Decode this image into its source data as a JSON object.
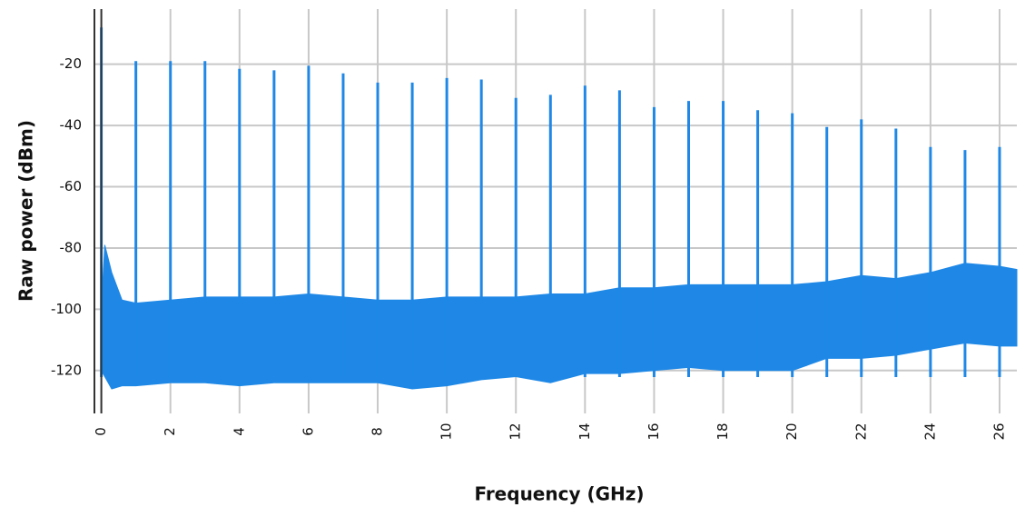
{
  "chart_data": {
    "type": "spectrum",
    "x_label": "Frequency (GHz)",
    "y_label": "Raw power (dBm)",
    "color": "#1f88e6",
    "grid": true,
    "xlim": [
      -0.2,
      26.5
    ],
    "ylim": [
      -134,
      -2
    ],
    "xticks": [
      0,
      2,
      4,
      6,
      8,
      10,
      12,
      14,
      16,
      18,
      20,
      22,
      24,
      26
    ],
    "yticks": [
      -20,
      -40,
      -60,
      -80,
      -100,
      -120
    ],
    "spikes": {
      "x": [
        0,
        1,
        2,
        3,
        4,
        5,
        6,
        7,
        8,
        9,
        10,
        11,
        12,
        13,
        14,
        15,
        16,
        17,
        18,
        19,
        20,
        21,
        22,
        23,
        24,
        25,
        26
      ],
      "values": [
        -8,
        -19,
        -19,
        -19,
        -21.5,
        -22,
        -20.5,
        -23,
        -26,
        -26,
        -24.5,
        -25,
        -31,
        -30,
        -27,
        -28.5,
        -34,
        -32,
        -32,
        -35,
        -36,
        -40.5,
        -38,
        -41,
        -47,
        -48,
        -47
      ]
    },
    "noise": {
      "x": [
        0,
        0.1,
        0.3,
        0.6,
        1,
        2,
        3,
        4,
        5,
        6,
        7,
        8,
        9,
        10,
        11,
        12,
        13,
        14,
        15,
        16,
        17,
        18,
        19,
        20,
        21,
        22,
        23,
        24,
        25,
        26,
        26.5
      ],
      "upper": [
        -100,
        -79,
        -88,
        -97,
        -98,
        -97,
        -96,
        -96,
        -96,
        -95,
        -96,
        -97,
        -97,
        -96,
        -96,
        -96,
        -95,
        -95,
        -93,
        -93,
        -92,
        -92,
        -92,
        -92,
        -91,
        -89,
        -90,
        -88,
        -85,
        -86,
        -87
      ],
      "lower": [
        -120,
        -122,
        -126,
        -125,
        -125,
        -124,
        -124,
        -125,
        -124,
        -124,
        -124,
        -124,
        -126,
        -125,
        -123,
        -122,
        -124,
        -121,
        -121,
        -120,
        -119,
        -120,
        -120,
        -120,
        -116,
        -116,
        -115,
        -113,
        -111,
        -112,
        -112
      ]
    }
  }
}
